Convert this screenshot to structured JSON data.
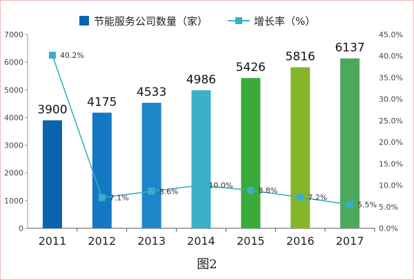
{
  "chart_data": {
    "type": "bar",
    "categories": [
      "2011",
      "2012",
      "2013",
      "2014",
      "2015",
      "2016",
      "2017"
    ],
    "series": [
      {
        "name": "节能服务公司数量（家）",
        "type": "bar",
        "axis": "left",
        "values": [
          3900,
          4175,
          4533,
          4986,
          5426,
          5816,
          6137
        ],
        "labels": [
          "3900",
          "4175",
          "4533",
          "4986",
          "5426",
          "5816",
          "6137"
        ],
        "colors": [
          "#0a64ad",
          "#1478c3",
          "#1c86c9",
          "#3bb0c9",
          "#3aaa3a",
          "#86b52a",
          "#4ea85c"
        ]
      },
      {
        "name": "增长率（%）",
        "type": "line",
        "axis": "right",
        "values": [
          40.2,
          7.1,
          8.6,
          10.0,
          8.8,
          7.2,
          5.5
        ],
        "labels": [
          "40.2%",
          "7.1%",
          "8.6%",
          "10.0%",
          "8.8%",
          "7.2%",
          "5.5%"
        ],
        "color": "#3aaec8"
      }
    ],
    "y_left": {
      "ylim": [
        0,
        7000
      ],
      "ticks": [
        "0",
        "1000",
        "2000",
        "3000",
        "4000",
        "5000",
        "6000",
        "7000"
      ]
    },
    "y_right": {
      "ylim": [
        0,
        45
      ],
      "ticks": [
        "0.0%",
        "5.0%",
        "10.0%",
        "15.0%",
        "20.0%",
        "25.0%",
        "30.0%",
        "35.0%",
        "40.0%",
        "45.0%"
      ]
    },
    "legend_position": "top-center",
    "grid": false,
    "caption": "图2"
  }
}
